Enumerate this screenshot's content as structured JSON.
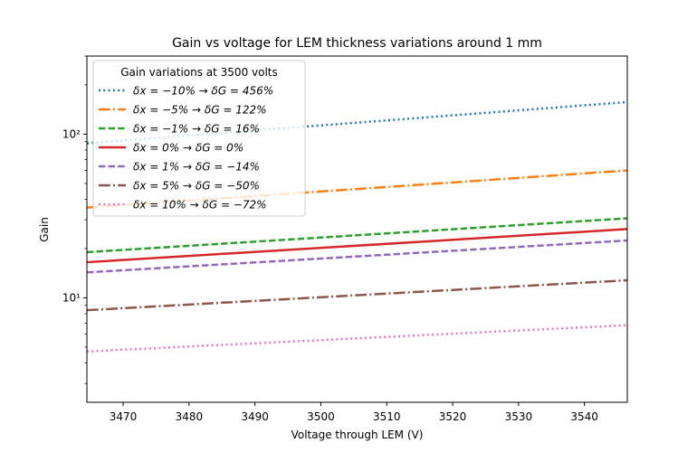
{
  "chart_data": {
    "type": "line",
    "title": "Gain vs voltage for LEM thickness variations around 1 mm",
    "xlabel": "Voltage through LEM (V)",
    "ylabel": "Gain",
    "xlim": [
      3464.5,
      3546.5
    ],
    "ylim": [
      2.3,
      300
    ],
    "yscale": "log",
    "grid": false,
    "x_ticks": [
      3470,
      3480,
      3490,
      3500,
      3510,
      3520,
      3530,
      3540
    ],
    "x_tick_labels": [
      "3470",
      "3480",
      "3490",
      "3500",
      "3510",
      "3520",
      "3530",
      "3540"
    ],
    "y_major_ticks": [
      10,
      100
    ],
    "y_tick_labels": [
      "10¹",
      "10²"
    ],
    "y_minor_ticks": [
      3,
      4,
      5,
      6,
      7,
      8,
      9,
      20,
      30,
      40,
      50,
      60,
      70,
      80,
      90,
      200,
      300
    ],
    "legend": {
      "title": "Gain variations at 3500 volts",
      "placement": "top-left"
    },
    "x": [
      3464.5,
      3546.5
    ],
    "series": [
      {
        "name": "δx = −10% → δG = 456%",
        "values": [
          88,
          157
        ],
        "color": "#1f77b4",
        "style": "dotted"
      },
      {
        "name": "δx = −5% → δG = 122%",
        "values": [
          35.6,
          60
        ],
        "color": "#ff7f0e",
        "style": "dashdot"
      },
      {
        "name": "δx = −1% → δG = 16%",
        "values": [
          19,
          30.6
        ],
        "color": "#2ca02c",
        "style": "dashed"
      },
      {
        "name": "δx = 0% → δG = 0%",
        "values": [
          16.5,
          26.3
        ],
        "color": "#d62728",
        "style": "solid"
      },
      {
        "name": "δx = 1% → δG = −14%",
        "values": [
          14.3,
          22.4
        ],
        "color": "#9467bd",
        "style": "dashed"
      },
      {
        "name": "δx = 5% → δG = −50%",
        "values": [
          8.4,
          12.8
        ],
        "color": "#8c564b",
        "style": "dashdot"
      },
      {
        "name": "δx = 10% → δG = −72%",
        "values": [
          4.7,
          6.8
        ],
        "color": "#e377c2",
        "style": "dotted"
      }
    ]
  }
}
